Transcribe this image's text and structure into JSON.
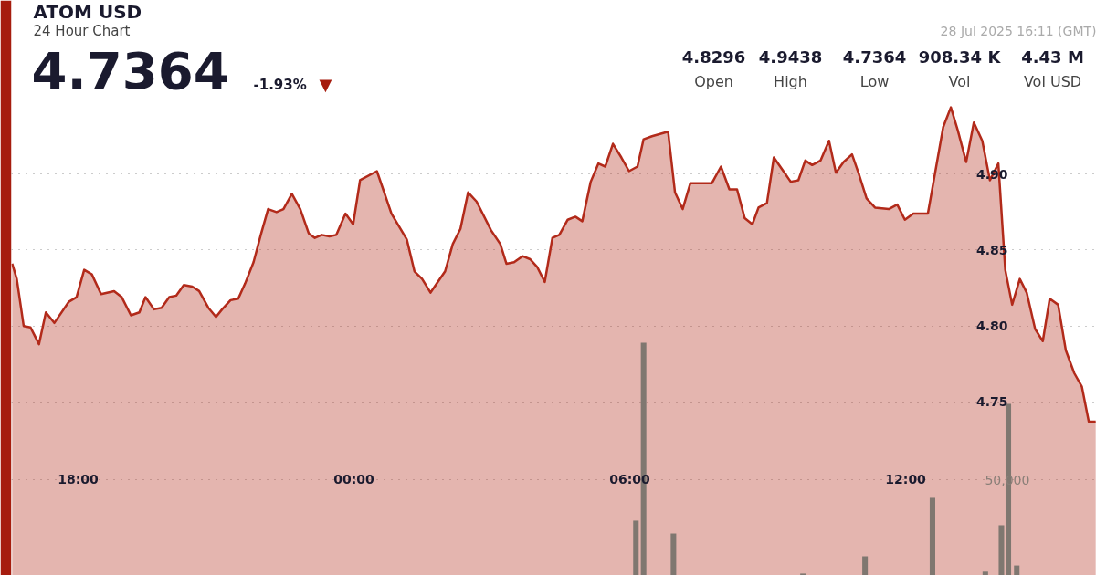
{
  "chart_data": {
    "type": "area",
    "title": "ATOM USD",
    "subtitle": "24 Hour Chart",
    "annotations": [
      "4.7364",
      "-1.93%",
      "▼",
      "28 Jul 2025 16:11 (GMT)",
      "4.8296",
      "Open",
      "4.9438",
      "High",
      "4.7364",
      "Low",
      "908.34 K",
      "Vol",
      "4.43 M",
      "Vol USD"
    ],
    "xlim": [
      "2025-07-27T16:33",
      "2025-07-28T16:09"
    ],
    "ylim": [
      4.6357,
      5.0144
    ],
    "y2lim": [
      0,
      300000
    ],
    "xticks": [
      {
        "value": "2025-07-27T18:00",
        "label": "18:00"
      },
      {
        "value": "2025-07-28T00:00",
        "label": "00:00"
      },
      {
        "value": "2025-07-28T06:00",
        "label": "06:00"
      },
      {
        "value": "2025-07-28T12:00",
        "label": "12:00"
      }
    ],
    "yticks": [
      {
        "value": 4.75,
        "label": "4.75"
      },
      {
        "value": 4.8,
        "label": "4.80"
      },
      {
        "value": 4.85,
        "label": "4.85"
      },
      {
        "value": 4.9,
        "label": "4.90"
      }
    ],
    "y2ticks": [
      {
        "value": 50000,
        "label": "50,000"
      }
    ],
    "grid": "y",
    "series": [
      {
        "color": "#b22a1a",
        "x": [
          "2025-07-27T16:34",
          "2025-07-27T16:40",
          "2025-07-27T16:49",
          "2025-07-27T16:58",
          "2025-07-27T17:09",
          "2025-07-27T17:18",
          "2025-07-27T17:29",
          "2025-07-27T17:48",
          "2025-07-27T17:58",
          "2025-07-27T18:08",
          "2025-07-27T18:18",
          "2025-07-27T18:30",
          "2025-07-27T18:47",
          "2025-07-27T18:57",
          "2025-07-27T19:09",
          "2025-07-27T19:20",
          "2025-07-27T19:28",
          "2025-07-27T19:39",
          "2025-07-27T19:49",
          "2025-07-27T19:59",
          "2025-07-27T20:08",
          "2025-07-27T20:18",
          "2025-07-27T20:29",
          "2025-07-27T20:38",
          "2025-07-27T20:50",
          "2025-07-27T21:00",
          "2025-07-27T21:08",
          "2025-07-27T21:19",
          "2025-07-27T21:29",
          "2025-07-27T21:38",
          "2025-07-27T21:49",
          "2025-07-27T21:59",
          "2025-07-27T22:08",
          "2025-07-27T22:19",
          "2025-07-27T22:28",
          "2025-07-27T22:39",
          "2025-07-27T22:50",
          "2025-07-27T23:01",
          "2025-07-27T23:09",
          "2025-07-27T23:18",
          "2025-07-27T23:28",
          "2025-07-27T23:37",
          "2025-07-27T23:49",
          "2025-07-27T23:59",
          "2025-07-28T00:08",
          "2025-07-28T00:30",
          "2025-07-28T00:49",
          "2025-07-28T01:09",
          "2025-07-28T01:19",
          "2025-07-28T01:29",
          "2025-07-28T01:40",
          "2025-07-28T01:59",
          "2025-07-28T02:09",
          "2025-07-28T02:19",
          "2025-07-28T02:29",
          "2025-07-28T02:40",
          "2025-07-28T02:59",
          "2025-07-28T03:11",
          "2025-07-28T03:19",
          "2025-07-28T03:29",
          "2025-07-28T03:40",
          "2025-07-28T03:50",
          "2025-07-28T03:59",
          "2025-07-28T04:09",
          "2025-07-28T04:19",
          "2025-07-28T04:28",
          "2025-07-28T04:39",
          "2025-07-28T04:49",
          "2025-07-28T04:58",
          "2025-07-28T05:09",
          "2025-07-28T05:19",
          "2025-07-28T05:28",
          "2025-07-28T05:38",
          "2025-07-28T05:49",
          "2025-07-28T05:59",
          "2025-07-28T06:10",
          "2025-07-28T06:18",
          "2025-07-28T06:29",
          "2025-07-28T06:50",
          "2025-07-28T06:59",
          "2025-07-28T07:09",
          "2025-07-28T07:19",
          "2025-07-28T07:47",
          "2025-07-28T07:59",
          "2025-07-28T08:10",
          "2025-07-28T08:20",
          "2025-07-28T08:30",
          "2025-07-28T08:40",
          "2025-07-28T08:48",
          "2025-07-28T08:59",
          "2025-07-28T09:08",
          "2025-07-28T09:19",
          "2025-07-28T09:30",
          "2025-07-28T09:40",
          "2025-07-28T09:49",
          "2025-07-28T09:58",
          "2025-07-28T10:09",
          "2025-07-28T10:20",
          "2025-07-28T10:29",
          "2025-07-28T10:39",
          "2025-07-28T10:50",
          "2025-07-28T10:59",
          "2025-07-28T11:09",
          "2025-07-28T11:20",
          "2025-07-28T11:38",
          "2025-07-28T11:49",
          "2025-07-28T11:59",
          "2025-07-28T12:10",
          "2025-07-28T12:29",
          "2025-07-28T12:49",
          "2025-07-28T12:59",
          "2025-07-28T13:08",
          "2025-07-28T13:19",
          "2025-07-28T13:29",
          "2025-07-28T13:40",
          "2025-07-28T13:50",
          "2025-07-28T14:01",
          "2025-07-28T14:10",
          "2025-07-28T14:19",
          "2025-07-28T14:29",
          "2025-07-28T14:38",
          "2025-07-28T14:49",
          "2025-07-28T14:59",
          "2025-07-28T15:08",
          "2025-07-28T15:19",
          "2025-07-28T15:29",
          "2025-07-28T15:40",
          "2025-07-28T15:50",
          "2025-07-28T15:59",
          "2025-07-28T16:08"
        ],
        "values": [
          4.841,
          4.831,
          4.8,
          4.799,
          4.788,
          4.809,
          4.802,
          4.816,
          4.819,
          4.837,
          4.834,
          4.821,
          4.823,
          4.819,
          4.807,
          4.809,
          4.819,
          4.811,
          4.812,
          4.819,
          4.82,
          4.827,
          4.826,
          4.823,
          4.812,
          4.806,
          4.811,
          4.817,
          4.818,
          4.828,
          4.842,
          4.861,
          4.877,
          4.875,
          4.877,
          4.887,
          4.877,
          4.861,
          4.858,
          4.86,
          4.859,
          4.86,
          4.874,
          4.867,
          4.896,
          4.902,
          4.874,
          4.857,
          4.836,
          4.831,
          4.822,
          4.836,
          4.854,
          4.864,
          4.888,
          4.882,
          4.863,
          4.854,
          4.841,
          4.842,
          4.846,
          4.844,
          4.839,
          4.829,
          4.858,
          4.86,
          4.87,
          4.872,
          4.869,
          4.895,
          4.907,
          4.905,
          4.92,
          4.911,
          4.902,
          4.905,
          4.923,
          4.925,
          4.928,
          4.888,
          4.877,
          4.894,
          4.894,
          4.905,
          4.89,
          4.89,
          4.871,
          4.867,
          4.878,
          4.881,
          4.911,
          4.903,
          4.895,
          4.896,
          4.909,
          4.906,
          4.909,
          4.922,
          4.901,
          4.908,
          4.913,
          4.9,
          4.884,
          4.878,
          4.877,
          4.88,
          4.87,
          4.874,
          4.874,
          4.931,
          4.944,
          4.929,
          4.908,
          4.934,
          4.922,
          4.896,
          4.907,
          4.837,
          4.814,
          4.831,
          4.822,
          4.798,
          4.79,
          4.818,
          4.814,
          4.784,
          4.769,
          4.76,
          4.737,
          4.737
        ]
      },
      {
        "type": "bar",
        "axis": "y2",
        "color": "#7f7770",
        "x": [
          "2025-07-28T06:08",
          "2025-07-28T06:18",
          "2025-07-28T06:57",
          "2025-07-28T09:46",
          "2025-07-28T11:07",
          "2025-07-28T12:35",
          "2025-07-28T13:44",
          "2025-07-28T14:05",
          "2025-07-28T14:14",
          "2025-07-28T14:25"
        ],
        "values": [
          28600,
          121400,
          21900,
          1000,
          10000,
          40500,
          2000,
          26200,
          89500,
          5200
        ]
      }
    ]
  }
}
